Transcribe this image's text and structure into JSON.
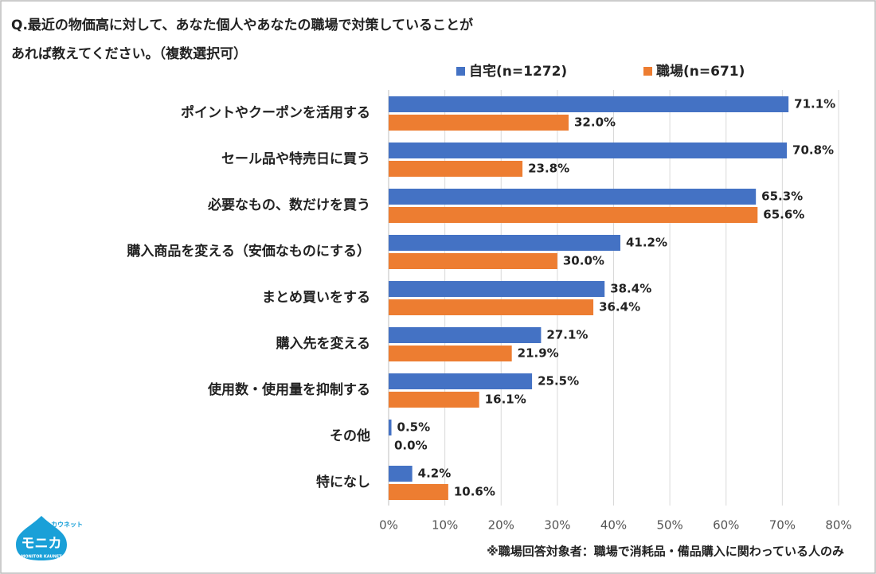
{
  "chart_data": {
    "type": "bar",
    "orientation": "horizontal",
    "title": [
      "Q.最近の物価高に対して、あなた個人やあなたの職場で対策していることが",
      "あれば教えてください。（複数選択可）"
    ],
    "categories": [
      "ポイントやクーポンを活用する",
      "セール品や特売日に買う",
      "必要なもの、数だけを買う",
      "購入商品を変える（安価なものにする）",
      "まとめ買いをする",
      "購入先を変える",
      "使用数・使用量を抑制する",
      "その他",
      "特になし"
    ],
    "series": [
      {
        "name": "自宅(n=1272)",
        "color": "#4472c4",
        "values": [
          71.1,
          70.8,
          65.3,
          41.2,
          38.4,
          27.1,
          25.5,
          0.5,
          4.2
        ],
        "value_labels": [
          "71.1%",
          "70.8%",
          "65.3%",
          "41.2%",
          "38.4%",
          "27.1%",
          "25.5%",
          "0.5%",
          "4.2%"
        ]
      },
      {
        "name": "職場(n=671)",
        "color": "#ed7d31",
        "values": [
          32.0,
          23.8,
          65.6,
          30.0,
          36.4,
          21.9,
          16.1,
          0.0,
          10.6
        ],
        "value_labels": [
          "32.0%",
          "23.8%",
          "65.6%",
          "30.0%",
          "36.4%",
          "21.9%",
          "16.1%",
          "0.0%",
          "10.6%"
        ]
      }
    ],
    "xlim": [
      0,
      80
    ],
    "xticks": [
      {
        "value": 0,
        "label": "0%"
      },
      {
        "value": 10,
        "label": "10%"
      },
      {
        "value": 20,
        "label": "20%"
      },
      {
        "value": 30,
        "label": "30%"
      },
      {
        "value": 40,
        "label": "40%"
      },
      {
        "value": 50,
        "label": "50%"
      },
      {
        "value": 60,
        "label": "60%"
      },
      {
        "value": 70,
        "label": "70%"
      },
      {
        "value": 80,
        "label": "80%"
      }
    ],
    "grid": true,
    "legend": "top",
    "footnote": "※職場回答対象者：職場で消耗品・備品購入に関わっている人のみ",
    "logo": {
      "top": "カウネット",
      "main": "モニカ",
      "bottom": "MONITOR KAUNET"
    }
  }
}
